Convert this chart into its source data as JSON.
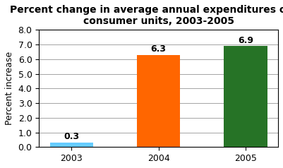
{
  "categories": [
    "2003",
    "2004",
    "2005"
  ],
  "values": [
    0.3,
    6.3,
    6.9
  ],
  "bar_colors": [
    "#66CCFF",
    "#FF6600",
    "#267326"
  ],
  "title_line1": "Percent change in average annual expenditures of all",
  "title_line2": "consumer units, 2003-2005",
  "ylabel": "Percent increase",
  "ylim": [
    0,
    8.0
  ],
  "yticks": [
    0.0,
    1.0,
    2.0,
    3.0,
    4.0,
    5.0,
    6.0,
    7.0,
    8.0
  ],
  "bar_width": 0.5,
  "background_color": "#FFFFFF",
  "label_fontsize": 9,
  "title_fontsize": 10,
  "axis_fontsize": 9
}
